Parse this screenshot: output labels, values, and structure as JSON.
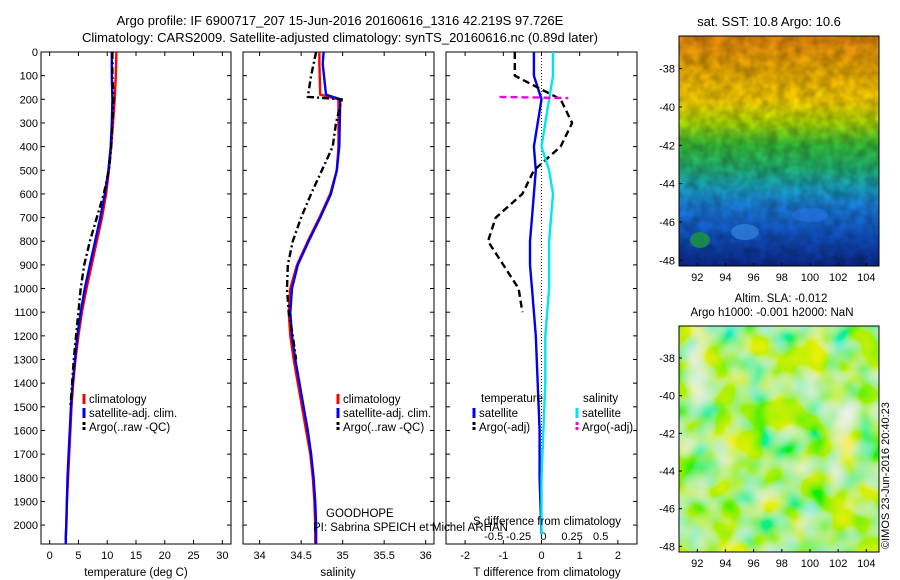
{
  "header": {
    "line1": "Argo profile: IF 6900717_207 15-Jun-2016 20160616_1316 42.219S 97.726E",
    "line2": "Climatology: CARS2009. Satellite-adjusted climatology: synTS_20160616.nc (0.89d later)"
  },
  "colors": {
    "climatology": "#ff0000",
    "satellite": "#0000ee",
    "argo": "#000000",
    "sal_satellite": "#00e5ee",
    "sal_argo": "#ee00ee"
  },
  "chart_data": [
    {
      "id": "temperature",
      "type": "line",
      "xlabel": "temperature (deg C)",
      "ylabel": "",
      "xlim": [
        -1.5,
        31.5
      ],
      "ylim": [
        0,
        2080
      ],
      "y_inverted": true,
      "xticks": [
        0,
        5,
        10,
        15,
        20,
        25,
        30
      ],
      "yticks": [
        0,
        100,
        200,
        300,
        400,
        500,
        600,
        700,
        800,
        900,
        1000,
        1100,
        1200,
        1300,
        1400,
        1500,
        1600,
        1700,
        1800,
        1900,
        2000
      ],
      "grid": false,
      "legend": "lower-center",
      "series": [
        {
          "name": "climatology",
          "color_key": "climatology",
          "style": "solid",
          "x": [
            11.6,
            11.5,
            11.3,
            11.0,
            10.7,
            10.3,
            9.8,
            9.1,
            8.2,
            7.3,
            6.4,
            5.6,
            5.0,
            4.5,
            4.1,
            3.8,
            3.6,
            3.4,
            3.2,
            3.0,
            2.9,
            2.8,
            2.8
          ],
          "y": [
            0,
            100,
            200,
            300,
            400,
            500,
            600,
            700,
            800,
            900,
            1000,
            1100,
            1200,
            1300,
            1400,
            1500,
            1600,
            1700,
            1800,
            1900,
            2000,
            2050,
            2080
          ]
        },
        {
          "name": "satellite-adj. clim.",
          "color_key": "satellite",
          "style": "solid",
          "x": [
            10.8,
            10.8,
            10.9,
            10.8,
            10.6,
            10.2,
            9.6,
            8.8,
            7.9,
            7.0,
            6.1,
            5.4,
            4.8,
            4.4,
            4.0,
            3.7,
            3.5,
            3.3,
            3.1,
            3.0,
            2.9,
            2.8,
            2.8
          ],
          "y": [
            0,
            100,
            200,
            300,
            400,
            500,
            600,
            700,
            800,
            900,
            1000,
            1100,
            1200,
            1300,
            1400,
            1500,
            1600,
            1700,
            1800,
            1900,
            2000,
            2050,
            2080
          ]
        },
        {
          "name": "Argo(..raw -QC)",
          "color_key": "argo",
          "style": "dashdot",
          "x": [
            10.9,
            10.9,
            11.1,
            10.9,
            10.7,
            10.3,
            9.4,
            8.2,
            7.0,
            6.0,
            5.4,
            5.0,
            4.6,
            4.2,
            3.9,
            3.6
          ],
          "y": [
            0,
            100,
            200,
            300,
            400,
            500,
            600,
            700,
            800,
            900,
            1000,
            1100,
            1200,
            1300,
            1400,
            1500
          ]
        }
      ],
      "legend_entries": [
        "climatology",
        "satellite-adj. clim.",
        "Argo(..raw -QC)"
      ]
    },
    {
      "id": "salinity",
      "type": "line",
      "xlabel": "salinity",
      "ylabel": "",
      "xlim": [
        33.8,
        36.1
      ],
      "ylim": [
        0,
        2080
      ],
      "y_inverted": true,
      "xticks": [
        34,
        34.5,
        35,
        35.5,
        36
      ],
      "grid": false,
      "legend": "lower-right",
      "series": [
        {
          "name": "climatology",
          "color_key": "climatology",
          "style": "solid",
          "x": [
            34.72,
            34.72,
            34.73,
            34.95,
            34.95,
            34.93,
            34.85,
            34.72,
            34.58,
            34.45,
            34.37,
            34.35,
            34.37,
            34.41,
            34.46,
            34.51,
            34.56,
            34.61,
            34.64,
            34.66,
            34.67,
            34.67
          ],
          "y": [
            0,
            50,
            180,
            200,
            400,
            500,
            600,
            700,
            800,
            900,
            1000,
            1100,
            1200,
            1300,
            1400,
            1500,
            1600,
            1700,
            1800,
            1900,
            2000,
            2080
          ]
        },
        {
          "name": "satellite-adj. clim.",
          "color_key": "satellite",
          "style": "solid",
          "x": [
            34.77,
            34.76,
            34.8,
            34.97,
            34.96,
            34.93,
            34.86,
            34.73,
            34.59,
            34.46,
            34.39,
            34.37,
            34.39,
            34.43,
            34.48,
            34.53,
            34.58,
            34.62,
            34.65,
            34.67,
            34.68,
            34.68
          ],
          "y": [
            0,
            50,
            180,
            200,
            400,
            500,
            600,
            700,
            800,
            900,
            1000,
            1100,
            1200,
            1300,
            1400,
            1500,
            1600,
            1700,
            1800,
            1900,
            2000,
            2080
          ]
        },
        {
          "name": "Argo(..raw -QC)",
          "color_key": "argo",
          "style": "dashdot",
          "x": [
            34.68,
            34.62,
            34.58,
            34.99,
            34.92,
            34.88,
            34.75,
            34.62,
            34.5,
            34.4,
            34.34,
            34.33,
            34.35,
            34.4,
            34.44
          ],
          "y": [
            0,
            100,
            190,
            200,
            300,
            400,
            500,
            600,
            700,
            800,
            900,
            1000,
            1100,
            1200,
            1300
          ]
        }
      ],
      "legend_entries": [
        "climatology",
        "satellite-adj. clim.",
        "Argo(..raw -QC)"
      ],
      "annotations": [
        "GOODHOPE",
        "PI: Sabrina SPEICH et Michel ARHAN"
      ]
    },
    {
      "id": "difference",
      "type": "line",
      "xlabel": "T difference from climatology",
      "xlabel_top": "S difference from climatology",
      "ylabel": "",
      "xlim": [
        -2.5,
        2.5
      ],
      "ylim": [
        0,
        2080
      ],
      "y_inverted": true,
      "xticks": [
        -2,
        -1,
        0,
        1,
        2
      ],
      "xticks_s": [
        "-0.5",
        "-0.25",
        "0",
        "0.25",
        "0.5"
      ],
      "grid": false,
      "legend": "lower-center",
      "legend_headers": [
        "temperature",
        "salinity"
      ],
      "series": [
        {
          "name": "satellite",
          "group": "temperature",
          "color_key": "satellite",
          "style": "solid",
          "x": [
            -0.2,
            -0.2,
            0.0,
            -0.1,
            -0.2,
            -0.15,
            -0.2,
            -0.25,
            -0.3,
            -0.3,
            -0.25,
            -0.15,
            -0.1,
            -0.05,
            -0.05,
            0.0
          ],
          "y": [
            0,
            100,
            200,
            300,
            400,
            500,
            600,
            700,
            800,
            900,
            1000,
            1200,
            1400,
            1600,
            1800,
            2040
          ]
        },
        {
          "name": "Argo(-adj)",
          "group": "temperature",
          "color_key": "argo",
          "style": "dashed",
          "x": [
            -0.7,
            -0.7,
            0.5,
            0.8,
            0.5,
            -0.2,
            -0.5,
            -1.2,
            -1.4,
            -1.0,
            -0.6,
            -0.5
          ],
          "y": [
            0,
            100,
            200,
            300,
            400,
            500,
            600,
            700,
            800,
            900,
            1000,
            1100
          ]
        },
        {
          "name": "satellite",
          "group": "salinity",
          "color_key": "sal_satellite",
          "style": "solid",
          "x": [
            0.3,
            0.3,
            0.2,
            0.1,
            0.0,
            0.2,
            0.3,
            0.2,
            0.2,
            0.1,
            0.1,
            0.0,
            0.0
          ],
          "y": [
            0,
            100,
            200,
            300,
            400,
            500,
            600,
            800,
            1000,
            1200,
            1400,
            1800,
            2040
          ]
        },
        {
          "name": "Argo(-adj)",
          "group": "salinity",
          "color_key": "sal_argo",
          "style": "dashed",
          "x": [
            -1.1,
            0.7
          ],
          "y": [
            190,
            195
          ]
        }
      ],
      "legend_entries": [
        "satellite",
        "Argo(-adj)",
        "satellite",
        "Argo(-adj)"
      ]
    },
    {
      "id": "sst_map",
      "type": "heatmap",
      "title": "sat. SST: 10.8 Argo: 10.6",
      "xticks": [
        92,
        94,
        96,
        98,
        100,
        102,
        104
      ],
      "yticks": [
        -38,
        -40,
        -42,
        -44,
        -46,
        -48
      ],
      "xlim": [
        90.7,
        104.9
      ],
      "ylim": [
        -48.3,
        -36.3
      ]
    },
    {
      "id": "sla_map",
      "type": "heatmap",
      "title_line1": "Altim. SLA: -0.012",
      "title_line2": "Argo h1000: -0.001 h2000: NaN",
      "xticks": [
        92,
        94,
        96,
        98,
        100,
        102,
        104
      ],
      "yticks": [
        -38,
        -40,
        -42,
        -44,
        -46,
        -48
      ],
      "xlim": [
        90.7,
        104.9
      ],
      "ylim": [
        -48.3,
        -36.3
      ]
    }
  ],
  "footer_stamp": "©IMOS 23-Jun-2016 20:40:23"
}
